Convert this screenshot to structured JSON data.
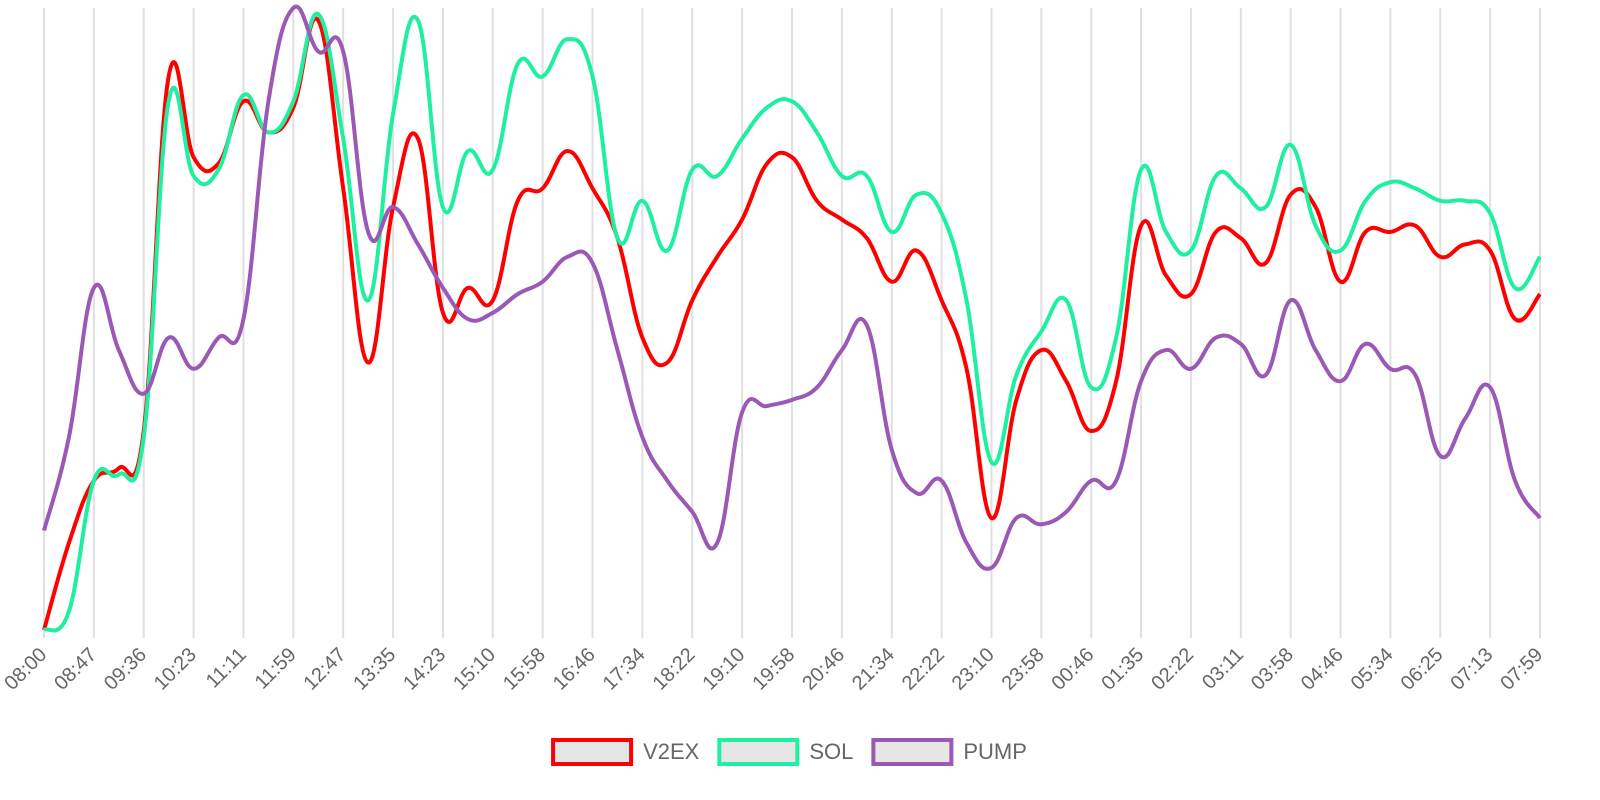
{
  "chart_data": {
    "type": "line",
    "categories": [
      "08:00",
      null,
      "08:47",
      null,
      "09:36",
      null,
      "10:23",
      null,
      "11:11",
      null,
      "11:59",
      null,
      "12:47",
      null,
      "13:35",
      null,
      "14:23",
      null,
      "15:10",
      null,
      "15:58",
      null,
      "16:46",
      null,
      "17:34",
      null,
      "18:22",
      null,
      "19:10",
      null,
      "19:58",
      null,
      "20:46",
      null,
      "21:34",
      null,
      "22:22",
      null,
      "23:10",
      null,
      "23:58",
      null,
      "00:46",
      null,
      "01:35",
      null,
      "02:22",
      null,
      "03:11",
      null,
      "03:58",
      null,
      "04:46",
      null,
      "05:34",
      null,
      "06:25",
      null,
      "07:13",
      null,
      "07:59"
    ],
    "series": [
      {
        "name": "V2EX",
        "color": "#ff0000",
        "values": [
          0,
          14,
          24,
          26,
          32,
          89,
          76,
          75,
          85,
          80,
          84,
          98,
          71,
          43,
          68,
          79,
          51,
          55,
          53,
          69,
          71,
          77,
          71,
          63,
          47,
          43,
          53,
          60,
          66,
          75,
          76,
          69,
          66,
          63,
          56,
          61,
          53,
          42,
          18,
          37,
          45,
          40,
          32,
          40,
          65,
          57,
          54,
          64,
          63,
          59,
          70,
          68,
          56,
          64,
          64,
          65,
          60,
          62,
          61,
          50,
          54
        ]
      },
      {
        "name": "SOL",
        "color": "#1ff0a0",
        "values": [
          0,
          3,
          24,
          25,
          31,
          85,
          73,
          74,
          86,
          80,
          85,
          99,
          79,
          53,
          83,
          98,
          68,
          77,
          74,
          91,
          89,
          95,
          89,
          63,
          69,
          61,
          74,
          73,
          79,
          84,
          85,
          80,
          73,
          73,
          64,
          70,
          67,
          53,
          27,
          41,
          48,
          53,
          39,
          47,
          74,
          64,
          61,
          73,
          71,
          68,
          78,
          65,
          61,
          69,
          72,
          71,
          69,
          69,
          67,
          55,
          60
        ]
      },
      {
        "name": "PUMP",
        "color": "#9b59b6",
        "values": [
          16,
          31,
          55,
          45,
          38,
          47,
          42,
          47,
          50,
          85,
          100,
          93,
          93,
          64,
          68,
          62,
          55,
          50,
          51,
          54,
          56,
          60,
          59,
          45,
          31,
          24,
          19,
          14,
          35,
          36,
          37,
          39,
          45,
          49,
          29,
          22,
          24,
          14,
          10,
          18,
          17,
          19,
          24,
          24,
          40,
          45,
          42,
          47,
          46,
          41,
          53,
          45,
          40,
          46,
          42,
          41,
          28,
          34,
          39,
          24,
          18
        ]
      }
    ],
    "ylim": [
      0,
      100
    ],
    "grid": true,
    "legend": "bottom"
  }
}
